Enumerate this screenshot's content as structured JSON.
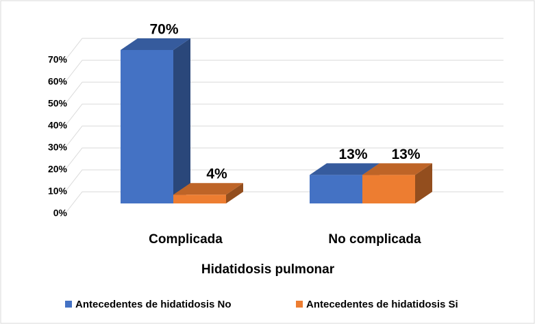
{
  "chart_data": {
    "type": "bar3d",
    "categories": [
      "Complicada",
      "No complicada"
    ],
    "x_label": "Hidatidosis pulmonar",
    "series": [
      {
        "name": "Antecedentes de hidatidosis No",
        "color": "#4472c4",
        "values": [
          70,
          13
        ],
        "value_labels": [
          "70%",
          "13%"
        ]
      },
      {
        "name": "Antecedentes de hidatidosis Si",
        "color": "#ed7d31",
        "values": [
          4,
          13
        ],
        "value_labels": [
          "4%",
          "13%"
        ]
      }
    ],
    "ylim": [
      0,
      70
    ],
    "yticks": [
      {
        "value": 0,
        "label": "0%"
      },
      {
        "value": 10,
        "label": "10%"
      },
      {
        "value": 20,
        "label": "20%"
      },
      {
        "value": 30,
        "label": "30%"
      },
      {
        "value": 40,
        "label": "40%"
      },
      {
        "value": 50,
        "label": "50%"
      },
      {
        "value": 60,
        "label": "60%"
      },
      {
        "value": 70,
        "label": "70%"
      }
    ],
    "grid": true,
    "legend": "bottom"
  }
}
